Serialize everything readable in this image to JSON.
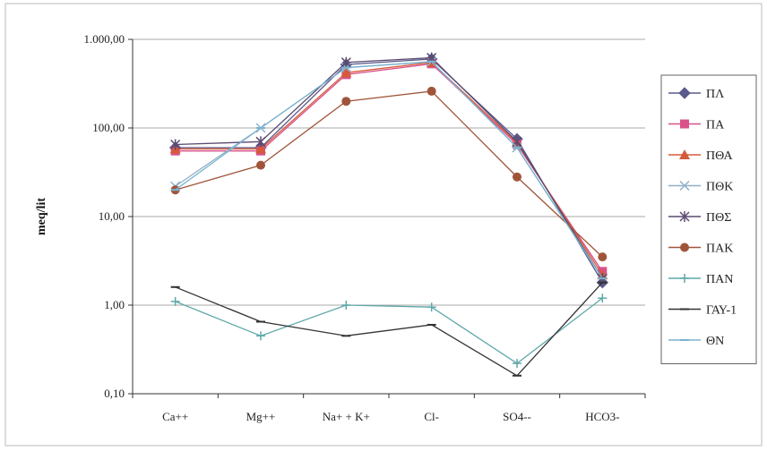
{
  "chart_data": {
    "type": "line",
    "title": "",
    "xlabel": "",
    "ylabel": "meq/lit",
    "y_scale": "log",
    "ylim": [
      0.1,
      1000
    ],
    "y_ticks": [
      {
        "value": 0.1,
        "label": "0,10"
      },
      {
        "value": 1,
        "label": "1,00"
      },
      {
        "value": 10,
        "label": "10,00"
      },
      {
        "value": 100,
        "label": "100,00"
      },
      {
        "value": 1000,
        "label": "1.000,00"
      }
    ],
    "grid": "horizontal",
    "legend_position": "right",
    "categories": [
      "Ca++",
      "Mg++",
      "Na+ + K+",
      "Cl-",
      "SO4--",
      "HCO3-"
    ],
    "series": [
      {
        "name": "ΠΛ",
        "color": "#5a5a8c",
        "marker": "diamond",
        "values": [
          60,
          60,
          520,
          600,
          75,
          1.8
        ]
      },
      {
        "name": "ΠΑ",
        "color": "#d9508a",
        "marker": "square",
        "values": [
          55,
          55,
          400,
          530,
          65,
          2.4
        ]
      },
      {
        "name": "ΠΘΑ",
        "color": "#d65a3a",
        "marker": "triangle",
        "values": [
          58,
          58,
          420,
          550,
          68,
          2.2
        ]
      },
      {
        "name": "ΠΘΚ",
        "color": "#8fb0c8",
        "marker": "x",
        "values": [
          22,
          100,
          480,
          560,
          60,
          2.0
        ]
      },
      {
        "name": "ΠΘΣ",
        "color": "#5a4a70",
        "marker": "star",
        "values": [
          65,
          70,
          550,
          620,
          70,
          2.0
        ]
      },
      {
        "name": "ΠΑΚ",
        "color": "#a0553a",
        "marker": "circle",
        "values": [
          20,
          38,
          200,
          260,
          28,
          3.5
        ]
      },
      {
        "name": "ΠΑΝ",
        "color": "#5fa8a8",
        "marker": "plus",
        "values": [
          1.1,
          0.45,
          1.0,
          0.95,
          0.22,
          1.2
        ]
      },
      {
        "name": "ΓΑΥ-1",
        "color": "#333333",
        "marker": "dash",
        "values": [
          1.6,
          0.65,
          0.45,
          0.6,
          0.16,
          1.8
        ]
      },
      {
        "name": "ΘΝ",
        "color": "#7ab3cf",
        "marker": "dash",
        "values": [
          20,
          100,
          480,
          560,
          60,
          2.0
        ]
      }
    ]
  }
}
